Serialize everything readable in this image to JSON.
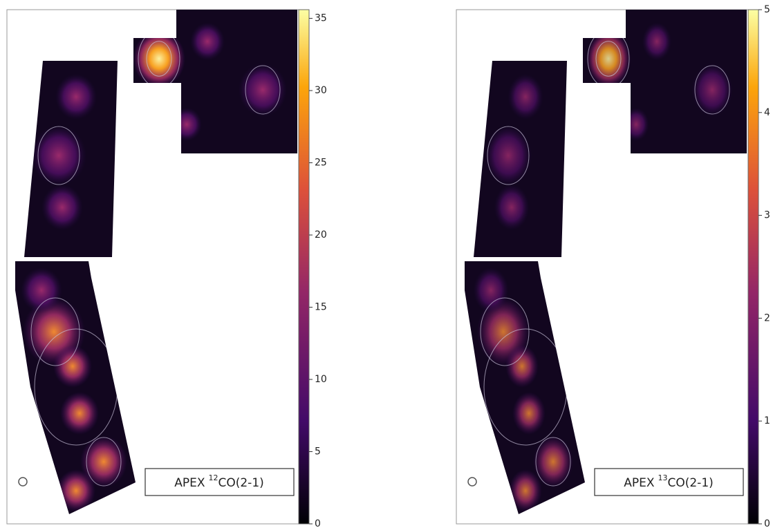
{
  "chart_data": [
    {
      "type": "image",
      "colorbar": {
        "ylim": [
          0,
          35.6
        ],
        "yticks": [
          0,
          5,
          10,
          15,
          20,
          25,
          30,
          35
        ],
        "colormap": "inferno"
      },
      "annotation": {
        "text": "APEX",
        "superscript": "12",
        "suffix": "CO(2-1)"
      }
    },
    {
      "type": "image",
      "colorbar": {
        "ylim": [
          0,
          5
        ],
        "yticks": [
          0,
          1,
          2,
          3,
          4,
          5
        ],
        "colormap": "inferno"
      },
      "annotation": {
        "text": "APEX",
        "superscript": "13",
        "suffix": "CO(2-1)"
      }
    }
  ]
}
